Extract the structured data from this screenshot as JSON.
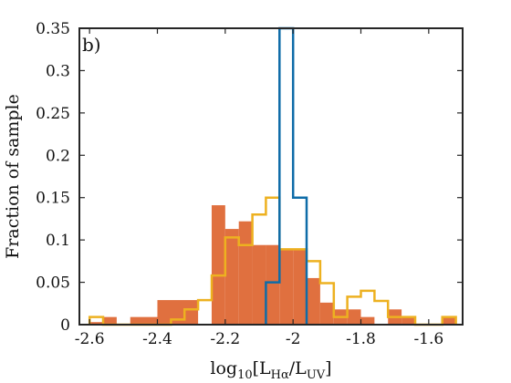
{
  "chart_data": {
    "type": "histogram",
    "panel_label": "b)",
    "xlabel": "log₁₀[L_Hα/L_UV]",
    "xlabel_parts": {
      "main": "log",
      "sub1": "10",
      "open": "[L",
      "sub2": "Hα",
      "mid": "/L",
      "sub3": "UV",
      "close": "]"
    },
    "ylabel": "Fraction of sample",
    "xlim": [
      -2.63,
      -1.5
    ],
    "ylim": [
      0,
      0.35
    ],
    "xticks": [
      -2.6,
      -2.4,
      -2.2,
      -2.0,
      -1.8,
      -1.6
    ],
    "xtick_labels": [
      "-2.6",
      "-2.4",
      "-2.2",
      "-2",
      "-1.8",
      "-1.6"
    ],
    "yticks": [
      0,
      0.05,
      0.1,
      0.15,
      0.2,
      0.25,
      0.3,
      0.35
    ],
    "ytick_labels": [
      "0",
      "0.05",
      "0.1",
      "0.15",
      "0.2",
      "0.25",
      "0.3",
      "0.35"
    ],
    "grid": false,
    "series": [
      {
        "style": "filled",
        "color": "#e0703f",
        "bins": [
          {
            "x0": -2.6,
            "x1": -2.56,
            "value": 0.003
          },
          {
            "x0": -2.56,
            "x1": -2.52,
            "value": 0.009
          },
          {
            "x0": -2.48,
            "x1": -2.4,
            "value": 0.009
          },
          {
            "x0": -2.4,
            "x1": -2.28,
            "value": 0.029
          },
          {
            "x0": -2.24,
            "x1": -2.2,
            "value": 0.141
          },
          {
            "x0": -2.2,
            "x1": -2.16,
            "value": 0.113
          },
          {
            "x0": -2.16,
            "x1": -2.12,
            "value": 0.122
          },
          {
            "x0": -2.12,
            "x1": -2.08,
            "value": 0.094
          },
          {
            "x0": -2.08,
            "x1": -2.04,
            "value": 0.094
          },
          {
            "x0": -2.04,
            "x1": -2.0,
            "value": 0.089
          },
          {
            "x0": -2.0,
            "x1": -1.96,
            "value": 0.089
          },
          {
            "x0": -1.96,
            "x1": -1.92,
            "value": 0.055
          },
          {
            "x0": -1.92,
            "x1": -1.88,
            "value": 0.026
          },
          {
            "x0": -1.88,
            "x1": -1.84,
            "value": 0.018
          },
          {
            "x0": -1.84,
            "x1": -1.8,
            "value": 0.018
          },
          {
            "x0": -1.8,
            "x1": -1.76,
            "value": 0.009
          },
          {
            "x0": -1.72,
            "x1": -1.68,
            "value": 0.018
          },
          {
            "x0": -1.68,
            "x1": -1.64,
            "value": 0.009
          },
          {
            "x0": -1.56,
            "x1": -1.52,
            "value": 0.009
          }
        ]
      },
      {
        "style": "step",
        "color": "#edb120",
        "points": [
          [
            -2.6,
            0.0
          ],
          [
            -2.6,
            0.009
          ],
          [
            -2.56,
            0.009
          ],
          [
            -2.56,
            0.0
          ],
          [
            -2.36,
            0.0
          ],
          [
            -2.36,
            0.006
          ],
          [
            -2.32,
            0.006
          ],
          [
            -2.32,
            0.018
          ],
          [
            -2.28,
            0.018
          ],
          [
            -2.28,
            0.029
          ],
          [
            -2.24,
            0.029
          ],
          [
            -2.24,
            0.058
          ],
          [
            -2.2,
            0.058
          ],
          [
            -2.2,
            0.103
          ],
          [
            -2.16,
            0.103
          ],
          [
            -2.16,
            0.094
          ],
          [
            -2.12,
            0.094
          ],
          [
            -2.12,
            0.13
          ],
          [
            -2.08,
            0.13
          ],
          [
            -2.08,
            0.15
          ],
          [
            -2.04,
            0.15
          ],
          [
            -2.04,
            0.089
          ],
          [
            -1.96,
            0.089
          ],
          [
            -1.96,
            0.075
          ],
          [
            -1.92,
            0.075
          ],
          [
            -1.92,
            0.049
          ],
          [
            -1.88,
            0.049
          ],
          [
            -1.88,
            0.009
          ],
          [
            -1.84,
            0.009
          ],
          [
            -1.84,
            0.033
          ],
          [
            -1.8,
            0.033
          ],
          [
            -1.8,
            0.04
          ],
          [
            -1.76,
            0.04
          ],
          [
            -1.76,
            0.028
          ],
          [
            -1.72,
            0.028
          ],
          [
            -1.72,
            0.009
          ],
          [
            -1.68,
            0.009
          ],
          [
            -1.68,
            0.009
          ],
          [
            -1.64,
            0.009
          ],
          [
            -1.64,
            0.0
          ],
          [
            -1.56,
            0.0
          ],
          [
            -1.56,
            0.009
          ],
          [
            -1.52,
            0.009
          ],
          [
            -1.52,
            0.0
          ]
        ]
      },
      {
        "style": "step",
        "color": "#0e6ca8",
        "points": [
          [
            -2.08,
            0.0
          ],
          [
            -2.08,
            0.05
          ],
          [
            -2.04,
            0.05
          ],
          [
            -2.04,
            0.35
          ],
          [
            -2.0,
            0.35
          ],
          [
            -2.0,
            0.15
          ],
          [
            -1.96,
            0.15
          ],
          [
            -1.96,
            0.0
          ]
        ]
      }
    ]
  }
}
